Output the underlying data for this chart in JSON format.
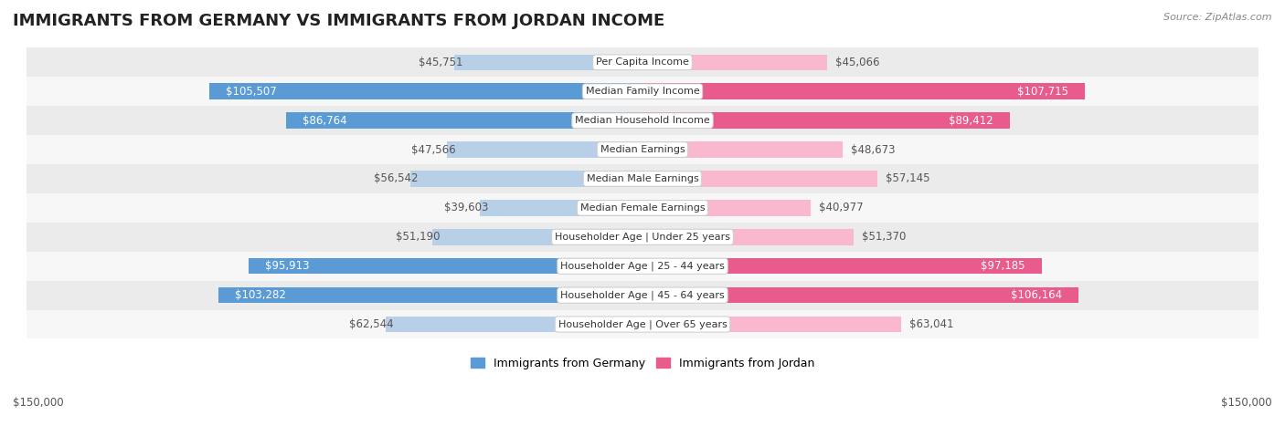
{
  "title": "IMMIGRANTS FROM GERMANY VS IMMIGRANTS FROM JORDAN INCOME",
  "source": "Source: ZipAtlas.com",
  "categories": [
    "Per Capita Income",
    "Median Family Income",
    "Median Household Income",
    "Median Earnings",
    "Median Male Earnings",
    "Median Female Earnings",
    "Householder Age | Under 25 years",
    "Householder Age | 25 - 44 years",
    "Householder Age | 45 - 64 years",
    "Householder Age | Over 65 years"
  ],
  "germany_values": [
    45751,
    105507,
    86764,
    47566,
    56542,
    39603,
    51190,
    95913,
    103282,
    62544
  ],
  "jordan_values": [
    45066,
    107715,
    89412,
    48673,
    57145,
    40977,
    51370,
    97185,
    106164,
    63041
  ],
  "germany_labels": [
    "$45,751",
    "$105,507",
    "$86,764",
    "$47,566",
    "$56,542",
    "$39,603",
    "$51,190",
    "$95,913",
    "$103,282",
    "$62,544"
  ],
  "jordan_labels": [
    "$45,066",
    "$107,715",
    "$89,412",
    "$48,673",
    "$57,145",
    "$40,977",
    "$51,370",
    "$97,185",
    "$106,164",
    "$63,041"
  ],
  "germany_color_light": "#b8cfe8",
  "germany_color_dark": "#5b9bd5",
  "jordan_color_light": "#f9b8cd",
  "jordan_color_dark": "#e95b8c",
  "germany_inside_threshold": 70000,
  "jordan_inside_threshold": 70000,
  "max_value": 150000,
  "legend_germany": "Immigrants from Germany",
  "legend_jordan": "Immigrants from Jordan",
  "bar_height": 0.55,
  "row_bg_colors": [
    "#ebebeb",
    "#f7f7f7",
    "#ebebeb",
    "#f7f7f7",
    "#ebebeb",
    "#f7f7f7",
    "#ebebeb",
    "#f7f7f7",
    "#ebebeb",
    "#f7f7f7"
  ],
  "title_fontsize": 13,
  "label_fontsize": 8.5,
  "category_fontsize": 8,
  "axis_label": "$150,000",
  "background_color": "#ffffff"
}
